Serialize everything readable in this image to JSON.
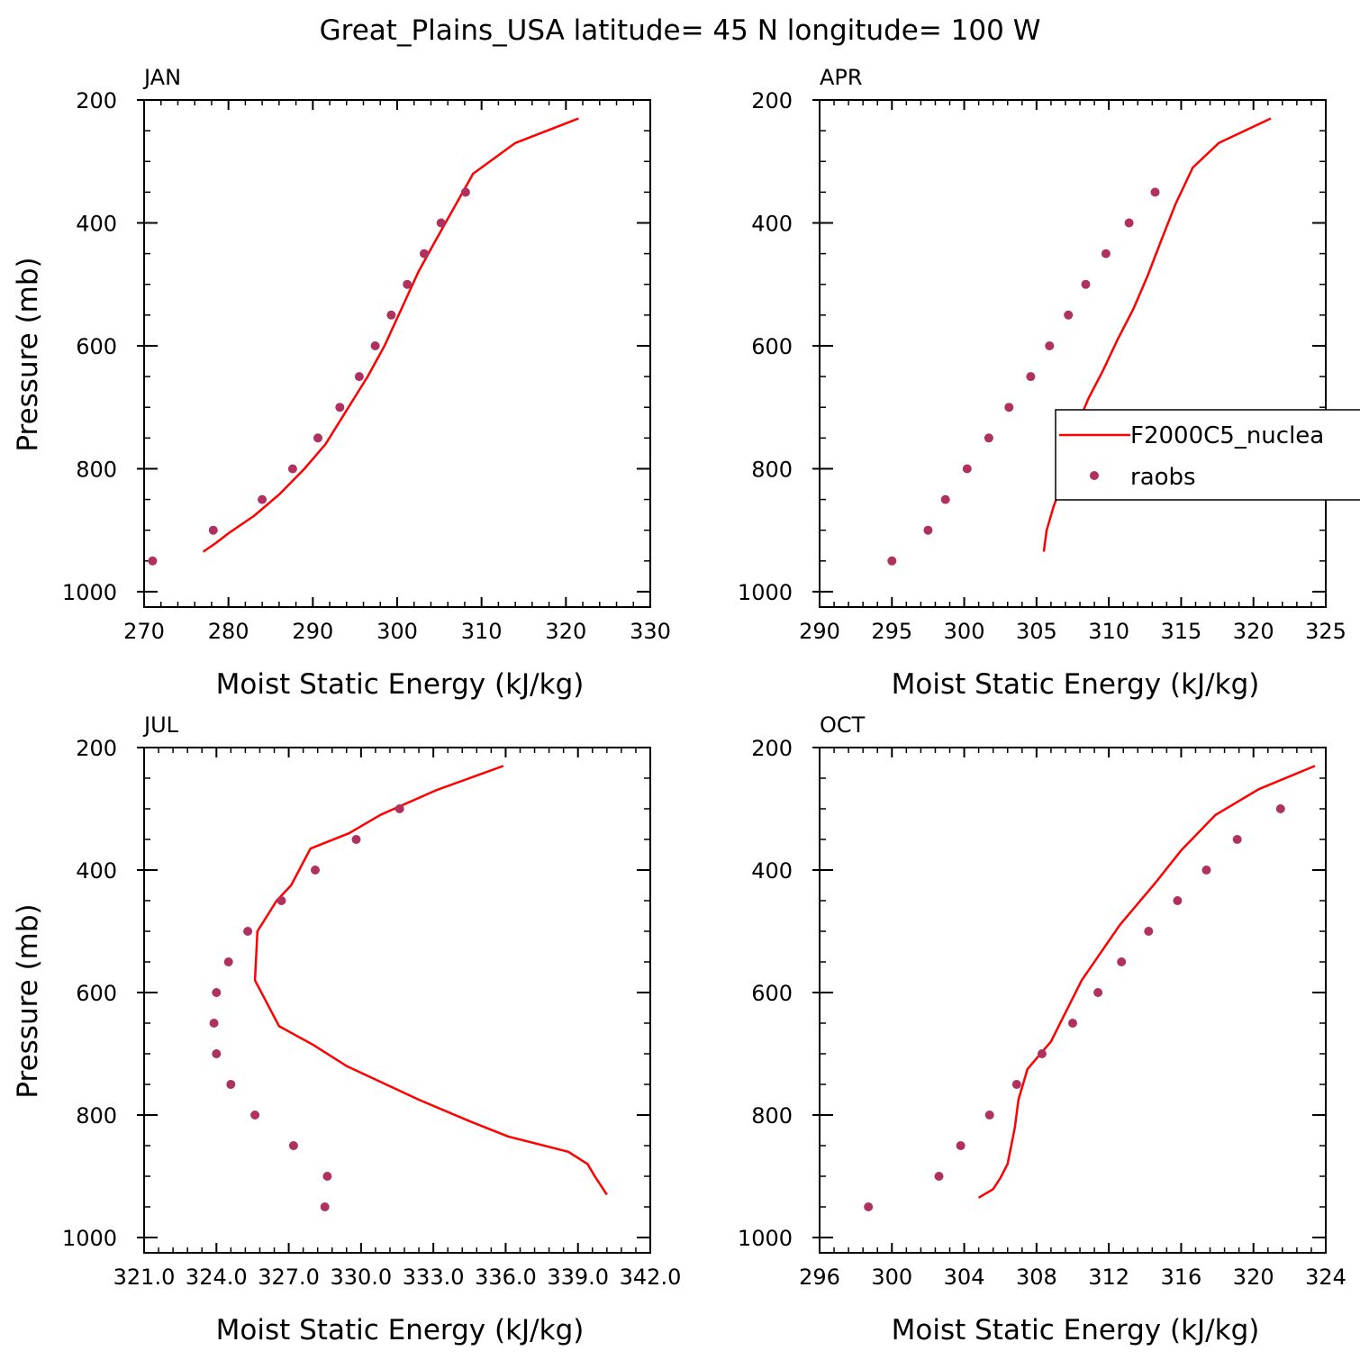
{
  "figure": {
    "title": "Great_Plains_USA  latitude= 45 N longitude= 100 W"
  },
  "colors": {
    "model": "#ff0000",
    "obs": "#b03060",
    "axis": "#000000"
  },
  "legend": {
    "model_label": "F2000C5_nuclea",
    "obs_label": "raobs"
  },
  "chart_data": [
    {
      "type": "line",
      "panel": "JAN",
      "title": "JAN",
      "xlabel": "Moist Static Energy (kJ/kg)",
      "ylabel": "Pressure (mb)",
      "xlim": [
        270,
        330
      ],
      "ylim": [
        1025,
        200
      ],
      "x_ticks": [
        270,
        280,
        290,
        300,
        310,
        320,
        330
      ],
      "x_tick_labels": [
        "270",
        "280",
        "290",
        "300",
        "310",
        "320",
        "330"
      ],
      "y_ticks": [
        200,
        400,
        600,
        800,
        1000
      ],
      "y_tick_labels": [
        "200",
        "400",
        "600",
        "800",
        "1000"
      ],
      "series": [
        {
          "name": "F2000C5_nuclea",
          "kind": "line",
          "x": [
            277.0,
            278.5,
            280.0,
            283.0,
            286.0,
            289.0,
            291.5,
            294.0,
            296.5,
            298.5,
            300.5,
            302.5,
            304.5,
            309.0,
            314.0,
            321.5
          ],
          "y": [
            935,
            921,
            905,
            877,
            842,
            800,
            760,
            705,
            650,
            600,
            540,
            480,
            430,
            320,
            270,
            230
          ]
        },
        {
          "name": "raobs",
          "kind": "scatter",
          "x": [
            271.0,
            278.2,
            284.0,
            287.6,
            290.6,
            293.2,
            295.5,
            297.4,
            299.3,
            301.2,
            303.2,
            305.2,
            308.1
          ],
          "y": [
            950,
            900,
            850,
            800,
            750,
            700,
            650,
            600,
            550,
            500,
            450,
            400,
            350
          ]
        }
      ]
    },
    {
      "type": "line",
      "panel": "APR",
      "title": "APR",
      "xlabel": "Moist Static Energy (kJ/kg)",
      "ylabel": "",
      "xlim": [
        290,
        325
      ],
      "ylim": [
        1025,
        200
      ],
      "x_ticks": [
        290,
        295,
        300,
        305,
        310,
        315,
        320,
        325
      ],
      "x_tick_labels": [
        "290",
        "295",
        "300",
        "305",
        "310",
        "315",
        "320",
        "325"
      ],
      "y_ticks": [
        200,
        400,
        600,
        800,
        1000
      ],
      "y_tick_labels": [
        "200",
        "400",
        "600",
        "800",
        "1000"
      ],
      "series": [
        {
          "name": "F2000C5_nuclea",
          "kind": "line",
          "x": [
            305.5,
            305.7,
            306.2,
            306.7,
            307.1,
            307.7,
            308.6,
            309.6,
            310.6,
            311.7,
            312.7,
            313.6,
            314.6,
            315.8,
            317.6,
            321.2
          ],
          "y": [
            935,
            900,
            860,
            830,
            780,
            735,
            685,
            640,
            590,
            540,
            485,
            430,
            370,
            310,
            270,
            230
          ]
        },
        {
          "name": "raobs",
          "kind": "scatter",
          "x": [
            295.0,
            297.5,
            298.7,
            300.2,
            301.7,
            303.1,
            304.6,
            305.9,
            307.2,
            308.4,
            309.8,
            311.4,
            313.2
          ],
          "y": [
            950,
            900,
            850,
            800,
            750,
            700,
            650,
            600,
            550,
            500,
            450,
            400,
            350
          ]
        }
      ]
    },
    {
      "type": "line",
      "panel": "JUL",
      "title": "JUL",
      "xlabel": "Moist Static Energy (kJ/kg)",
      "ylabel": "Pressure (mb)",
      "xlim": [
        321.0,
        342.0
      ],
      "ylim": [
        1025,
        200
      ],
      "x_ticks": [
        321.0,
        324.0,
        327.0,
        330.0,
        333.0,
        336.0,
        339.0,
        342.0
      ],
      "x_tick_labels": [
        "321.0",
        "324.0",
        "327.0",
        "330.0",
        "333.0",
        "336.0",
        "339.0",
        "342.0"
      ],
      "y_ticks": [
        200,
        400,
        600,
        800,
        1000
      ],
      "y_tick_labels": [
        "200",
        "400",
        "600",
        "800",
        "1000"
      ],
      "series": [
        {
          "name": "F2000C5_nuclea",
          "kind": "line",
          "x": [
            340.2,
            339.7,
            339.4,
            338.6,
            336.1,
            334.5,
            332.4,
            329.4,
            328.0,
            326.6,
            325.6,
            325.7,
            326.5,
            327.1,
            327.9,
            329.5,
            330.8,
            333.1,
            335.9
          ],
          "y": [
            930,
            900,
            880,
            860,
            835,
            810,
            775,
            720,
            685,
            655,
            580,
            500,
            450,
            425,
            365,
            340,
            310,
            270,
            230
          ]
        },
        {
          "name": "raobs",
          "kind": "scatter",
          "x": [
            328.5,
            328.6,
            327.2,
            325.6,
            324.6,
            324.0,
            323.9,
            324.0,
            324.5,
            325.3,
            326.7,
            328.1,
            329.8,
            331.6
          ],
          "y": [
            950,
            900,
            850,
            800,
            750,
            700,
            650,
            600,
            550,
            500,
            450,
            400,
            350,
            300
          ]
        }
      ]
    },
    {
      "type": "line",
      "panel": "OCT",
      "title": "OCT",
      "xlabel": "Moist Static Energy (kJ/kg)",
      "ylabel": "",
      "xlim": [
        296,
        324
      ],
      "ylim": [
        1025,
        200
      ],
      "x_ticks": [
        296,
        300,
        304,
        308,
        312,
        316,
        320,
        324
      ],
      "x_tick_labels": [
        "296",
        "300",
        "304",
        "308",
        "312",
        "316",
        "320",
        "324"
      ],
      "y_ticks": [
        200,
        400,
        600,
        800,
        1000
      ],
      "y_tick_labels": [
        "200",
        "400",
        "600",
        "800",
        "1000"
      ],
      "series": [
        {
          "name": "F2000C5_nuclea",
          "kind": "line",
          "x": [
            304.8,
            305.6,
            306.0,
            306.4,
            306.6,
            306.8,
            307.0,
            307.5,
            308.8,
            310.5,
            312.6,
            314.6,
            316.0,
            317.9,
            320.3,
            323.4
          ],
          "y": [
            935,
            921,
            903,
            880,
            850,
            820,
            775,
            725,
            680,
            580,
            490,
            420,
            368,
            310,
            268,
            230
          ]
        },
        {
          "name": "raobs",
          "kind": "scatter",
          "x": [
            298.7,
            302.6,
            303.8,
            305.4,
            306.9,
            308.3,
            310.0,
            311.4,
            312.7,
            314.2,
            315.8,
            317.4,
            319.1,
            321.5
          ],
          "y": [
            950,
            900,
            850,
            800,
            750,
            700,
            650,
            600,
            550,
            500,
            450,
            400,
            350,
            300
          ]
        }
      ]
    }
  ]
}
